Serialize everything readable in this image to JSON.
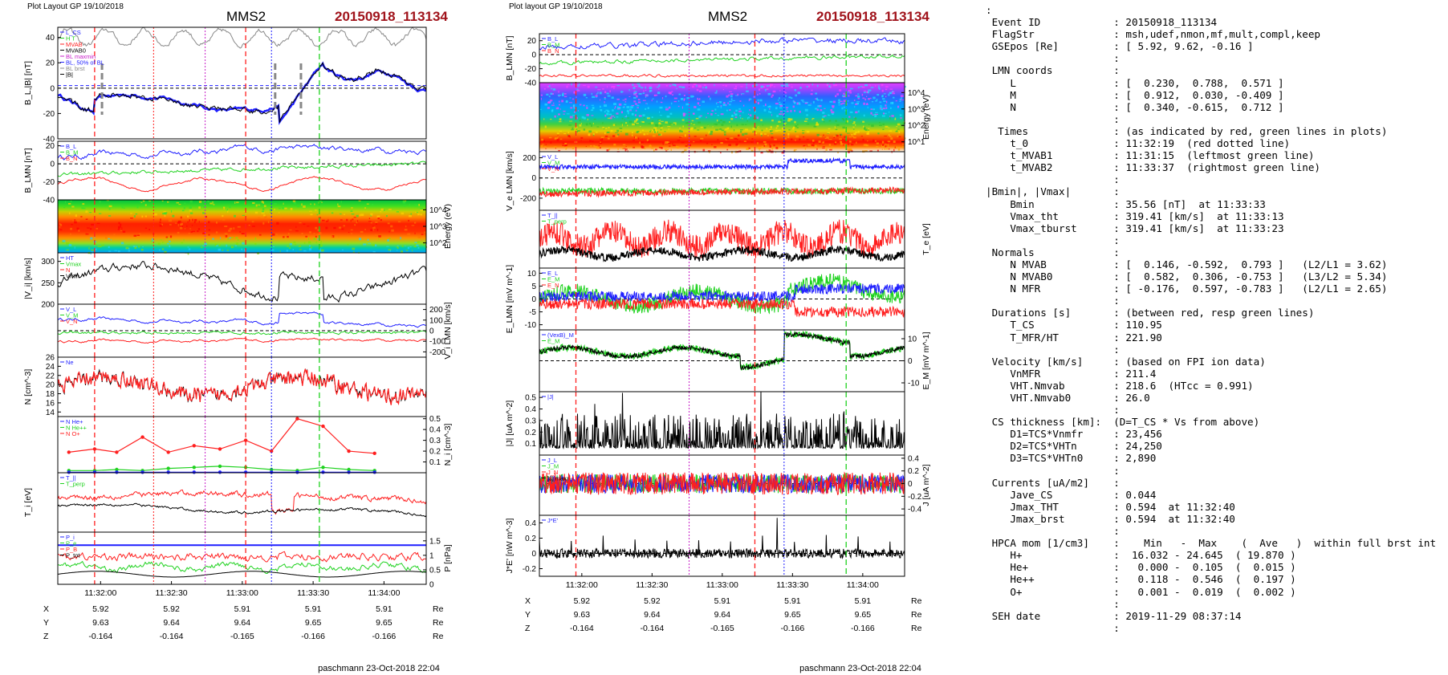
{
  "colors": {
    "blue": "#1f1fff",
    "red": "#ff1f1f",
    "green": "#1fd21f",
    "black": "#000000",
    "magenta": "#c81ec8",
    "title_red": "#a0131b",
    "grey": "#888888"
  },
  "left": {
    "header": "Plot Layout GP 19/10/2018",
    "title": "MMS2",
    "event": "20150918_113134",
    "panels": [
      {
        "ylabel": "B_L,|B| [nT]",
        "ylim": [
          -40,
          48
        ],
        "ticks": [
          -40,
          -20,
          0,
          20,
          40
        ],
        "side": "left",
        "legend": [
          "L_CS",
          "H T",
          "MVAB",
          "MVAB0",
          "BL maxmin",
          "BL, 50% of BL",
          "BL brst",
          "|B|"
        ]
      },
      {
        "ylabel": "B_LMN [nT]",
        "ylim": [
          -40,
          25
        ],
        "ticks": [
          -40,
          -20,
          0,
          20
        ],
        "side": "left",
        "legend": [
          "B_L",
          "B_M",
          "B_N"
        ]
      },
      {
        "ylabel": "Energy (eV)",
        "ylim": [
          1,
          4.5
        ],
        "ticks": [
          "10^4",
          "10^3",
          "10^2"
        ],
        "side": "right",
        "spectrogram": true
      },
      {
        "ylabel": "|V_i| [km/s]",
        "ylim": [
          200,
          320
        ],
        "ticks": [
          200,
          250,
          300
        ],
        "side": "left",
        "legend": [
          "HT",
          "Vmax",
          "N",
          "Vmin"
        ]
      },
      {
        "ylabel": "V_i LMN [km/s]",
        "ylim": [
          -250,
          250
        ],
        "ticks": [
          -200,
          -100,
          0,
          100,
          200
        ],
        "side": "right",
        "legend": [
          "V_L",
          "V_M",
          "V_N"
        ]
      },
      {
        "ylabel": "N [cm^-3]",
        "ylim": [
          13,
          26
        ],
        "ticks": [
          14,
          16,
          18,
          20,
          22,
          24,
          26
        ],
        "side": "left",
        "legend": [
          "Ne"
        ]
      },
      {
        "ylabel": "N_i [cm^-3]",
        "ylim": [
          0,
          0.52
        ],
        "ticks": [
          0.1,
          0.2,
          0.3,
          0.4,
          0.5
        ],
        "side": "right",
        "legend": [
          "N  He+",
          "N  He++",
          "N  O+"
        ]
      },
      {
        "ylabel": "T_i [eV]",
        "ylim": [
          0,
          450
        ],
        "ticks": [],
        "side": "left",
        "legend": [
          "T_||",
          "T_perp"
        ]
      },
      {
        "ylabel": "P [nPa]",
        "ylim": [
          0,
          1.8
        ],
        "ticks": [
          0.0,
          0.5,
          1.0,
          1.5
        ],
        "side": "right",
        "legend": [
          "P_i",
          "P_e",
          "P_B",
          "P_tot"
        ]
      }
    ],
    "xticks": [
      "11:32:00",
      "11:32:30",
      "11:33:00",
      "11:33:30",
      "11:34:00"
    ],
    "pos_rows": [
      {
        "label": "X",
        "values": [
          "5.92",
          "5.92",
          "5.91",
          "5.91",
          "5.91"
        ],
        "unit": "Re"
      },
      {
        "label": "Y",
        "values": [
          "9.63",
          "9.64",
          "9.64",
          "9.65",
          "9.65"
        ],
        "unit": "Re"
      },
      {
        "label": "Z",
        "values": [
          "-0.164",
          "-0.164",
          "-0.165",
          "-0.166",
          "-0.166"
        ],
        "unit": "Re"
      }
    ],
    "footer": "paschmann 23-Oct-2018 22:04"
  },
  "right": {
    "header": "Plot layout GP 19/10/2018",
    "title": "MMS2",
    "event": "20150918_113134",
    "panels": [
      {
        "ylabel": "B_LMN [nT]",
        "ylim": [
          -40,
          30
        ],
        "ticks": [
          -40,
          -20,
          0,
          20
        ],
        "side": "left",
        "legend": [
          "B_L",
          "B_M",
          "B_N"
        ]
      },
      {
        "ylabel": "Energy (eV)",
        "ylim": [
          1,
          4.5
        ],
        "ticks": [
          "10^4",
          "10^3",
          "10^2",
          "10^1"
        ],
        "side": "right",
        "spectrogram": true
      },
      {
        "ylabel": "V_e LMN [km/s]",
        "ylim": [
          -320,
          260
        ],
        "ticks": [
          -200,
          0,
          200
        ],
        "side": "left",
        "legend": [
          "V_L",
          "V_M",
          "V_N"
        ]
      },
      {
        "ylabel": "T_e [eV]",
        "ylim": [
          0,
          60
        ],
        "ticks": [],
        "side": "right",
        "legend": [
          "T_||",
          "T_perp"
        ]
      },
      {
        "ylabel": "E_LMN [mV m^-1]",
        "ylim": [
          -12,
          12
        ],
        "ticks": [
          -10,
          -5,
          0,
          5,
          10
        ],
        "side": "left",
        "legend": [
          "E_L",
          "E_M",
          "E_N"
        ]
      },
      {
        "ylabel": "E_M [mV m^-1]",
        "ylim": [
          -14,
          14
        ],
        "ticks": [
          -10,
          0,
          10
        ],
        "side": "right",
        "legend": [
          "(VexB)_M",
          "E_M"
        ]
      },
      {
        "ylabel": "|J| [uA m^-2]",
        "ylim": [
          0,
          0.55
        ],
        "ticks": [
          0.1,
          0.2,
          0.3,
          0.4,
          0.5
        ],
        "side": "left",
        "legend": [
          "|J|"
        ]
      },
      {
        "ylabel": "J [uA m^-2]",
        "ylim": [
          -0.5,
          0.45
        ],
        "ticks": [
          -0.4,
          -0.2,
          0.0,
          0.2,
          0.4
        ],
        "side": "right",
        "legend": [
          "J_L",
          "J_M",
          "J_N",
          "|J| max"
        ]
      },
      {
        "ylabel": "J*E' [nW m^-3]",
        "ylim": [
          -0.3,
          0.5
        ],
        "ticks": [
          -0.2,
          0.0,
          0.2,
          0.4
        ],
        "side": "left",
        "legend": [
          "J*E'"
        ]
      }
    ],
    "xticks": [
      "11:32:00",
      "11:32:30",
      "11:33:00",
      "11:33:30",
      "11:34:00"
    ],
    "pos_rows": [
      {
        "label": "X",
        "values": [
          "5.92",
          "5.92",
          "5.91",
          "5.91",
          "5.91"
        ],
        "unit": "Re"
      },
      {
        "label": "Y",
        "values": [
          "9.63",
          "9.64",
          "9.64",
          "9.65",
          "9.65"
        ],
        "unit": "Re"
      },
      {
        "label": "Z",
        "values": [
          "-0.164",
          "-0.164",
          "-0.165",
          "-0.166",
          "-0.166"
        ],
        "unit": "Re"
      }
    ],
    "footer": "paschmann 23-Oct-2018 22:04"
  },
  "chart_data": [
    {
      "type": "line",
      "title": "MMS2 20150918_113134",
      "x": [
        "11:32:00",
        "11:32:30",
        "11:33:00",
        "11:33:30",
        "11:34:00"
      ],
      "series": [
        {
          "name": "B_L",
          "values": [
            -10,
            2,
            8,
            20,
            -8
          ]
        },
        {
          "name": "|V_i|",
          "values": [
            230,
            285,
            250,
            300,
            230
          ]
        },
        {
          "name": "Ne",
          "values": [
            20,
            19,
            20,
            22,
            19
          ]
        },
        {
          "name": "N He+",
          "values": [
            0.02,
            0.03,
            0.05,
            0.03,
            0.02
          ]
        },
        {
          "name": "N He++",
          "values": [
            0.28,
            0.26,
            0.2,
            0.5,
            0.2
          ]
        },
        {
          "name": "N O+",
          "values": [
            0.005,
            0.005,
            0.005,
            0.005,
            0.005
          ]
        }
      ]
    },
    {
      "type": "line",
      "title": "MMS2 20150918_113134",
      "x": [
        "11:32:00",
        "11:32:30",
        "11:33:00",
        "11:33:30",
        "11:34:00"
      ],
      "series": [
        {
          "name": "B_L",
          "values": [
            8,
            18,
            22,
            12,
            12
          ]
        },
        {
          "name": "V_L",
          "values": [
            130,
            110,
            80,
            140,
            90
          ]
        },
        {
          "name": "|J|",
          "values": [
            0.1,
            0.1,
            0.1,
            0.1,
            0.08
          ]
        },
        {
          "name": "J*E'",
          "values": [
            0,
            0,
            0,
            0,
            0
          ]
        }
      ]
    }
  ],
  "info_lines": [
    ":",
    " Event ID            : 20150918_113134",
    " FlagStr             : msh,udef,nmon,mf,mult,compl,keep",
    " GSEpos [Re]         : [ 5.92, 9.62, -0.16 ]",
    "                     :",
    " LMN coords          :",
    "    L                : [  0.230,  0.788,  0.571 ]",
    "    M                : [  0.912,  0.030, -0.409 ]",
    "    N                : [  0.340, -0.615,  0.712 ]",
    "                     :",
    "  Times              : (as indicated by red, green lines in plots)",
    "    t_0              : 11:32:19  (red dotted line)",
    "    t_MVAB1          : 11:31:15  (leftmost green line)",
    "    t_MVAB2          : 11:33:37  (rightmost green line)",
    "                     :",
    "|Bmin|, |Vmax|       :",
    "    Bmin             : 35.56 [nT]  at 11:33:33",
    "    Vmax_tht         : 319.41 [km/s]  at 11:33:13",
    "    Vmax_tburst      : 319.41 [km/s]  at 11:33:23",
    "                     :",
    " Normals             :",
    "    N MVAB           : [  0.146, -0.592,  0.793 ]   (L2/L1 = 3.62)",
    "    N MVAB0          : [  0.582,  0.306, -0.753 ]   (L3/L2 = 5.34)",
    "    N MFR            : [ -0.176,  0.597, -0.783 ]   (L2/L1 = 2.65)",
    "                     :",
    " Durations [s]       : (between red, resp green lines)",
    "    T_CS             : 110.95",
    "    T_MFR/HT         : 221.90",
    "                     :",
    " Velocity [km/s]     : (based on FPI ion data)",
    "    VnMFR            : 211.4",
    "    VHT.Nmvab        : 218.6  (HTcc = 0.991)",
    "    VHT.Nmvab0       : 26.0",
    "                     :",
    " CS thickness [km]:  (D=T_CS * Vs from above)",
    "    D1=TCS*Vnmfr     : 23,456",
    "    D2=TCS*VHTn      : 24,250",
    "    D3=TCS*VHTn0     : 2,890",
    "                     :",
    " Currents [uA/m2]    :",
    "    Jave_CS          : 0.044",
    "    Jmax_THT         : 0.594  at 11:32:40",
    "    Jmax_brst        : 0.594  at 11:32:40",
    "                     :",
    " HPCA mom [1/cm3]    :    Min   -  Max    (  Ave   )  within full brst int",
    "    H+               :  16.032 - 24.645  ( 19.870 )",
    "    He+              :   0.000 -  0.105  (  0.015 )",
    "    He++             :   0.118 -  0.546  (  0.197 )",
    "    O+               :   0.001 -  0.019  (  0.002 )",
    "                     :",
    " SEH date            : 2019-11-29 08:37:14",
    "                     :"
  ]
}
